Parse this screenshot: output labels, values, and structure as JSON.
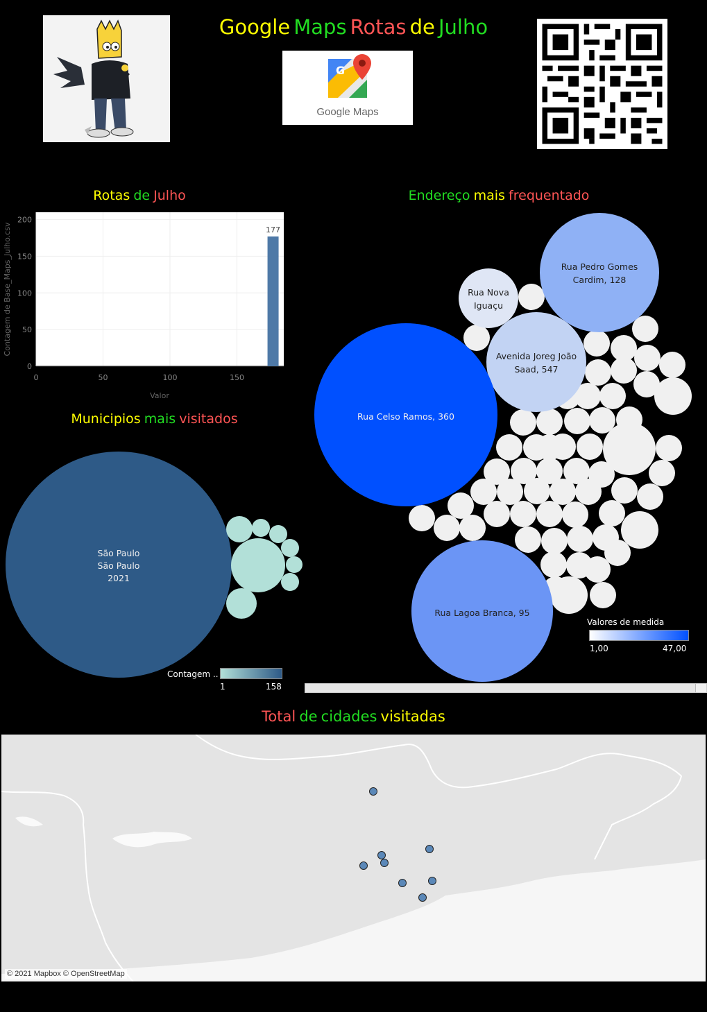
{
  "header": {
    "title_words": [
      {
        "text": "Google",
        "color": "#ffff00"
      },
      {
        "text": "Maps",
        "color": "#22dd22"
      },
      {
        "text": "Rotas",
        "color": "#ff5555"
      },
      {
        "text": "de",
        "color": "#ffff00"
      },
      {
        "text": "Julho",
        "color": "#22dd22"
      }
    ],
    "logo_text": "Google Maps",
    "qr_icon": "qr-code"
  },
  "bar_section": {
    "title_words": [
      {
        "text": "Rotas",
        "color": "#ffff00"
      },
      {
        "text": "de",
        "color": "#22dd22"
      },
      {
        "text": "Julho",
        "color": "#ff5555"
      }
    ]
  },
  "chart_data": [
    {
      "type": "bar",
      "categories": [
        "177"
      ],
      "x": [
        177
      ],
      "values": [
        177
      ],
      "xlabel": "Valor",
      "ylabel": "Contagem de Base_Maps_Julho.csv",
      "xlim": [
        0,
        185
      ],
      "ylim": [
        0,
        210
      ],
      "x_ticks": [
        0,
        50,
        100,
        150
      ],
      "y_ticks": [
        0,
        50,
        100,
        150,
        200
      ],
      "data_labels": [
        "177"
      ],
      "grid": true,
      "bar_color": "#4e79a7"
    }
  ],
  "municipios": {
    "title_words": [
      {
        "text": "Municipios",
        "color": "#ffff00"
      },
      {
        "text": "mais",
        "color": "#22dd22"
      },
      {
        "text": "visitados",
        "color": "#ff5555"
      }
    ],
    "main_bubble_lines": [
      "São Paulo",
      "São Paulo",
      "2021"
    ],
    "legend_label": "Contagem ..",
    "legend_min": "1",
    "legend_max": "158",
    "color_low": "#b2e0d8",
    "color_high": "#2e5a87"
  },
  "endereco": {
    "title_words": [
      {
        "text": "Endereço",
        "color": "#22dd22"
      },
      {
        "text": "mais",
        "color": "#ffff00"
      },
      {
        "text": "frequentado",
        "color": "#ff5555"
      }
    ],
    "labeled_bubbles": [
      {
        "lines": [
          "Rua Pedro Gomes",
          "Cardim, 128"
        ]
      },
      {
        "lines": [
          "Rua Nova",
          "Iguaçu"
        ]
      },
      {
        "lines": [
          "Avenida Joreg João",
          "Saad, 547"
        ]
      },
      {
        "lines": [
          "Rua Celso Ramos, 360"
        ]
      },
      {
        "lines": [
          "Rua Lagoa Branca, 95"
        ]
      }
    ],
    "legend_label": "Valores de medida",
    "legend_min": "1,00",
    "legend_max": "47,00",
    "color_low": "#ffffff",
    "color_high": "#0050ff"
  },
  "cidades": {
    "title_words": [
      {
        "text": "Total",
        "color": "#ff5555"
      },
      {
        "text": "de",
        "color": "#22dd22"
      },
      {
        "text": "cidades",
        "color": "#22dd22"
      },
      {
        "text": "visitadas",
        "color": "#ffff00"
      }
    ],
    "attribution": "© 2021 Mapbox © OpenStreetMap",
    "point_count": 9
  }
}
